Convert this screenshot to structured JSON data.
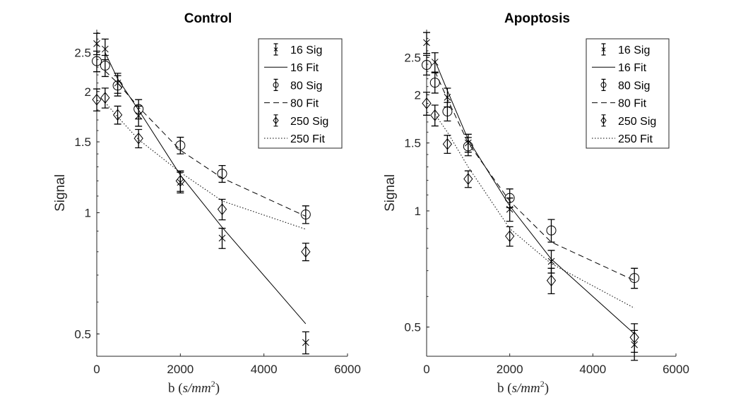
{
  "chart_data": [
    {
      "type": "line",
      "title": "Control",
      "xlabel": "b (s/mm^2)",
      "xlabel_parts": {
        "prefix": "b (",
        "math": "s/mm",
        "sup": "2",
        "suffix": ")"
      },
      "ylabel": "Signal",
      "xlim": [
        0,
        6000
      ],
      "ylim": [
        0.44,
        2.85
      ],
      "yscale": "log",
      "xticks": [
        0,
        2000,
        4000,
        6000
      ],
      "xtick_labels": [
        "0",
        "2000",
        "4000",
        "6000"
      ],
      "yticks": [
        0.5,
        1,
        1.5,
        2,
        2.5
      ],
      "ytick_labels": [
        "0.5",
        "1",
        "1.5",
        "2",
        "2.5"
      ],
      "grid": false,
      "legend_placement": "top-right",
      "series": [
        {
          "name": "16 Sig",
          "kind": "errorbar",
          "marker": "x",
          "x": [
            0,
            200,
            500,
            1000,
            2000,
            3000,
            5000
          ],
          "y": [
            2.63,
            2.55,
            2.1,
            1.74,
            1.19,
            0.865,
            0.476
          ],
          "err": [
            0.16,
            0.15,
            0.12,
            0.1,
            0.07,
            0.05,
            0.03
          ]
        },
        {
          "name": "16 Fit",
          "kind": "line",
          "style": "solid",
          "x": [
            200,
            500,
            1000,
            2000,
            3000,
            5000
          ],
          "y": [
            2.5,
            2.15,
            1.8,
            1.24,
            0.92,
            0.53
          ]
        },
        {
          "name": "80 Sig",
          "kind": "errorbar",
          "marker": "o",
          "x": [
            0,
            200,
            500,
            1000,
            2000,
            3000,
            5000
          ],
          "y": [
            2.38,
            2.32,
            2.07,
            1.81,
            1.47,
            1.25,
            0.99
          ],
          "err": [
            0.14,
            0.14,
            0.12,
            0.1,
            0.07,
            0.06,
            0.05
          ]
        },
        {
          "name": "80 Fit",
          "kind": "line",
          "style": "dashed",
          "x": [
            200,
            500,
            1000,
            2000,
            3000,
            5000
          ],
          "y": [
            2.25,
            2.1,
            1.83,
            1.43,
            1.22,
            0.98
          ]
        },
        {
          "name": "250 Sig",
          "kind": "errorbar",
          "marker": "d",
          "x": [
            0,
            200,
            500,
            1000,
            2000,
            3000,
            5000
          ],
          "y": [
            1.91,
            1.93,
            1.75,
            1.53,
            1.2,
            1.02,
            0.8
          ],
          "err": [
            0.12,
            0.11,
            0.09,
            0.08,
            0.07,
            0.06,
            0.04
          ]
        },
        {
          "name": "250 Fit",
          "kind": "line",
          "style": "dotted",
          "x": [
            200,
            500,
            1000,
            2000,
            3000,
            5000
          ],
          "y": [
            1.88,
            1.73,
            1.52,
            1.26,
            1.07,
            0.91
          ]
        }
      ]
    },
    {
      "type": "line",
      "title": "Apoptosis",
      "xlabel": "b (s/mm^2)",
      "xlabel_parts": {
        "prefix": "b (",
        "math": "s/mm",
        "sup": "2",
        "suffix": ")"
      },
      "ylabel": "Signal",
      "xlim": [
        0,
        6000
      ],
      "ylim": [
        0.42,
        2.95
      ],
      "yscale": "log",
      "xticks": [
        0,
        2000,
        4000,
        6000
      ],
      "xtick_labels": [
        "0",
        "2000",
        "4000",
        "6000"
      ],
      "yticks": [
        0.5,
        1,
        1.5,
        2,
        2.5
      ],
      "ytick_labels": [
        "0.5",
        "1",
        "1.5",
        "2",
        "2.5"
      ],
      "grid": false,
      "legend_placement": "top-right",
      "series": [
        {
          "name": "16 Sig",
          "kind": "errorbar",
          "marker": "x",
          "x": [
            0,
            200,
            500,
            1000,
            2000,
            3000,
            5000
          ],
          "y": [
            2.73,
            2.43,
            1.97,
            1.5,
            1.01,
            0.74,
            0.45
          ],
          "err": [
            0.17,
            0.14,
            0.11,
            0.08,
            0.07,
            0.05,
            0.04
          ]
        },
        {
          "name": "16 Fit",
          "kind": "line",
          "style": "solid",
          "x": [
            200,
            500,
            1000,
            2000,
            3000,
            5000
          ],
          "y": [
            2.45,
            2.05,
            1.53,
            1.03,
            0.75,
            0.48
          ]
        },
        {
          "name": "80 Sig",
          "kind": "errorbar",
          "marker": "o",
          "x": [
            0,
            200,
            500,
            1000,
            2000,
            3000,
            5000
          ],
          "y": [
            2.39,
            2.15,
            1.81,
            1.47,
            1.08,
            0.89,
            0.67
          ],
          "err": [
            0.14,
            0.13,
            0.1,
            0.08,
            0.06,
            0.06,
            0.04
          ]
        },
        {
          "name": "80 Fit",
          "kind": "line",
          "style": "dashed",
          "x": [
            200,
            500,
            1000,
            2000,
            3000,
            5000
          ],
          "y": [
            2.3,
            1.95,
            1.5,
            1.06,
            0.83,
            0.66
          ]
        },
        {
          "name": "250 Sig",
          "kind": "errorbar",
          "marker": "d",
          "x": [
            0,
            200,
            500,
            1000,
            2000,
            3000,
            5000
          ],
          "y": [
            1.9,
            1.77,
            1.49,
            1.21,
            0.86,
            0.66,
            0.47
          ],
          "err": [
            0.13,
            0.11,
            0.08,
            0.06,
            0.05,
            0.05,
            0.04
          ]
        },
        {
          "name": "250 Fit",
          "kind": "line",
          "style": "dotted",
          "x": [
            200,
            500,
            1000,
            2000,
            3000,
            5000
          ],
          "y": [
            1.78,
            1.6,
            1.3,
            0.9,
            0.73,
            0.56
          ]
        }
      ]
    }
  ]
}
